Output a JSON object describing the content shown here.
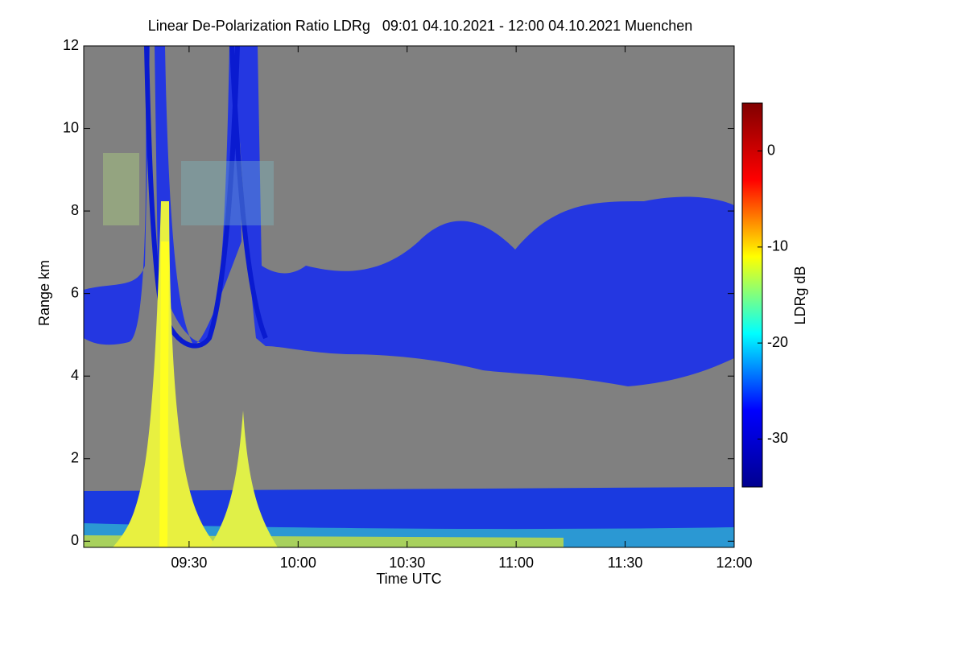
{
  "chart_data": {
    "type": "heatmap",
    "title": "Linear De-Polarization Ratio LDRg   09:01 04.10.2021 - 12:00 04.10.2021 Muenchen",
    "x_label": "Time UTC",
    "y_label": "Range km",
    "xlim": [
      9.0167,
      12
    ],
    "xticks": [
      {
        "value": 9.5,
        "label": "09:30"
      },
      {
        "value": 10,
        "label": "10:00"
      },
      {
        "value": 10.5,
        "label": "10:30"
      },
      {
        "value": 11,
        "label": "11:00"
      },
      {
        "value": 11.5,
        "label": "11:30"
      },
      {
        "value": 12,
        "label": "12:00"
      }
    ],
    "ylim": [
      -0.15,
      12
    ],
    "yticks": [
      0,
      2,
      4,
      6,
      8,
      10,
      12
    ],
    "colorbar": {
      "label": "LDRg dB",
      "lim": [
        -35,
        5
      ],
      "ticks": [
        0,
        -10,
        -20,
        -30
      ],
      "colors": [
        "#00008f",
        "#0000ff",
        "#00ffff",
        "#ffff00",
        "#ff0000",
        "#800000"
      ]
    },
    "background": "#808080"
  }
}
